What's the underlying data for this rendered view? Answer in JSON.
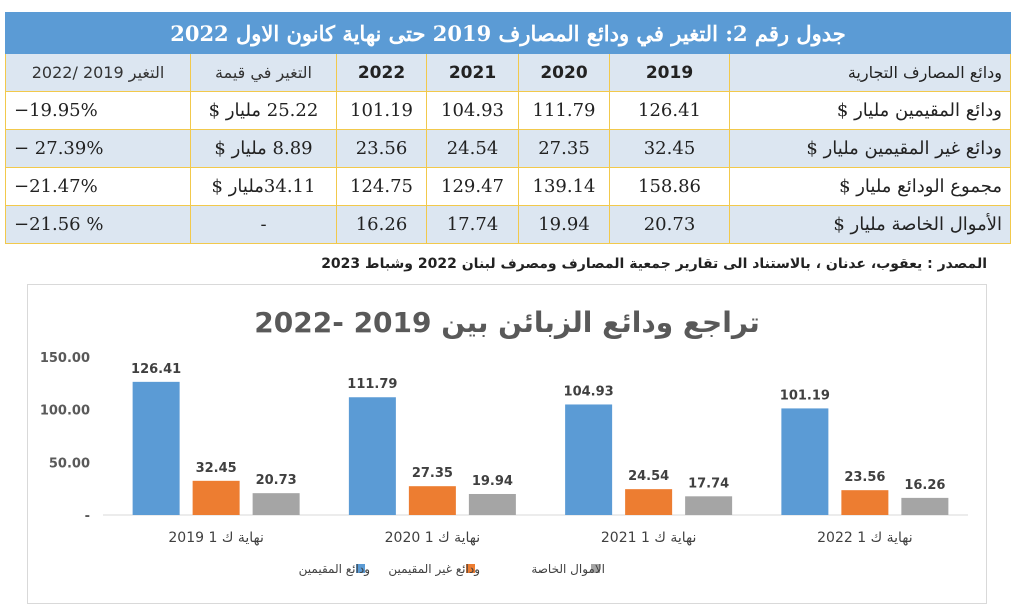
{
  "table": {
    "title": "جدول رقم 2: التغير في ودائع المصارف 2019 حتى نهاية كانون الاول 2022",
    "header": {
      "row_label": "ودائع المصارف التجارية",
      "years": [
        "2019",
        "2020",
        "2021",
        "2022"
      ],
      "change_value": "التغير في قيمة",
      "change_pct": "التغير 2019 /2022"
    },
    "rows": [
      {
        "label": "ودائع المقيمين مليار $",
        "values": [
          "126.41",
          "111.79",
          "104.93",
          "101.19"
        ],
        "change_value": "25.22 مليار $",
        "change_pct": "−19.95%"
      },
      {
        "label": "ودائع غير المقيمين مليار $",
        "values": [
          "32.45",
          "27.35",
          "24.54",
          "23.56"
        ],
        "change_value": "8.89 مليار $",
        "change_pct": "− 27.39%"
      },
      {
        "label": "مجموع الودائع مليار $",
        "values": [
          "158.86",
          "139.14",
          "129.47",
          "124.75"
        ],
        "change_value": "34.11مليار $",
        "change_pct": "−21.47%"
      },
      {
        "label": "الأموال الخاصة مليار $",
        "values": [
          "20.73",
          "19.94",
          "17.74",
          "16.26"
        ],
        "change_value": "-",
        "change_pct": "−21.56 %"
      }
    ]
  },
  "source": "المصدر : يعقوب، عدنان ، بالاستناد الى تقارير جمعية المصارف   ومصرف لبنان 2022 وشباط 2023",
  "chart_data": {
    "type": "bar",
    "title": "تراجع ودائع الزبائن بين 2019 -2022",
    "categories": [
      "2019 نهاية ك 1",
      "2020 نهاية ك 1",
      "2021 نهاية ك 1",
      "2022 نهاية ك 1"
    ],
    "series": [
      {
        "name": "ودائع المقيمين",
        "values": [
          126.41,
          111.79,
          104.93,
          101.19
        ],
        "color": "#5b9bd5"
      },
      {
        "name": "ودائع غير المقيمين",
        "values": [
          32.45,
          27.35,
          24.54,
          23.56
        ],
        "color": "#ed7d31"
      },
      {
        "name": "الاموال الخاصة",
        "values": [
          20.73,
          19.94,
          17.74,
          16.26
        ],
        "color": "#a5a5a5"
      }
    ],
    "y_ticks": [
      "-",
      "50.00",
      "100.00",
      "150.00"
    ],
    "y_tick_values": [
      0,
      50,
      100,
      150
    ],
    "ylim": [
      0,
      150
    ],
    "grid": false,
    "legend_position": "bottom",
    "data_labels": true
  }
}
